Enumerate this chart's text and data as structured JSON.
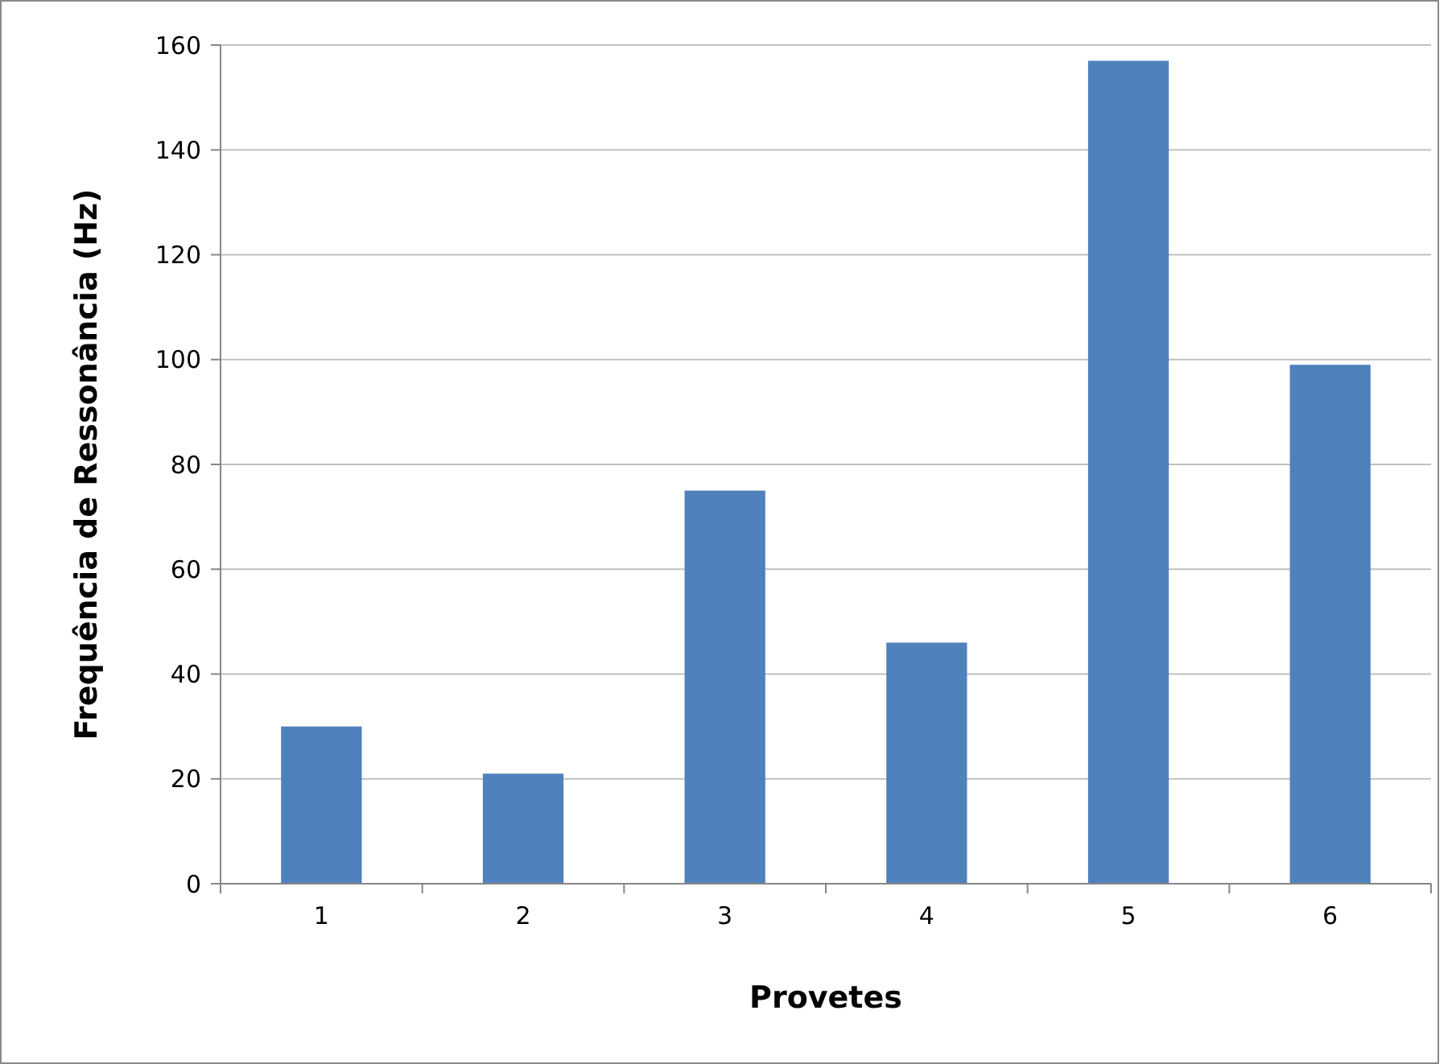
{
  "chart_data": {
    "type": "bar",
    "xlabel": "Provetes",
    "ylabel": "Frequência de Ressonância (Hz)",
    "categories": [
      "1",
      "2",
      "3",
      "4",
      "5",
      "6"
    ],
    "values": [
      30,
      21,
      75,
      46,
      157,
      99
    ],
    "color": "#4f81bd",
    "ylim": [
      0,
      160
    ],
    "yticks": [
      0,
      20,
      40,
      60,
      80,
      100,
      120,
      140,
      160
    ],
    "grid": "y"
  }
}
